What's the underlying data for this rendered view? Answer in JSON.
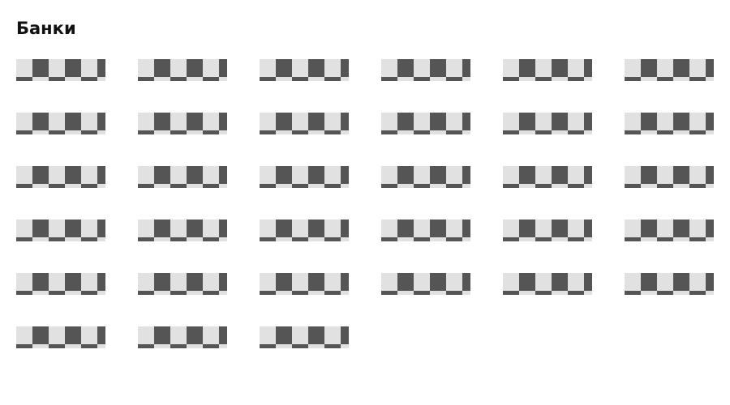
{
  "section": {
    "title": "Банки"
  },
  "logo_placeholder": {
    "light_color": "#e1e1e1",
    "dark_color": "#555555",
    "pattern": "checkerboard"
  },
  "banks": [
    {
      "status": "logo-loading"
    },
    {
      "status": "logo-loading"
    },
    {
      "status": "logo-loading"
    },
    {
      "status": "logo-loading"
    },
    {
      "status": "logo-loading"
    },
    {
      "status": "logo-loading"
    },
    {
      "status": "logo-loading"
    },
    {
      "status": "logo-loading"
    },
    {
      "status": "logo-loading"
    },
    {
      "status": "logo-loading"
    },
    {
      "status": "logo-loading"
    },
    {
      "status": "logo-loading"
    },
    {
      "status": "logo-loading"
    },
    {
      "status": "logo-loading"
    },
    {
      "status": "logo-loading"
    },
    {
      "status": "logo-loading"
    },
    {
      "status": "logo-loading"
    },
    {
      "status": "logo-loading"
    },
    {
      "status": "logo-loading"
    },
    {
      "status": "logo-loading"
    },
    {
      "status": "logo-loading"
    },
    {
      "status": "logo-loading"
    },
    {
      "status": "logo-loading"
    },
    {
      "status": "logo-loading"
    },
    {
      "status": "logo-loading"
    },
    {
      "status": "logo-loading"
    },
    {
      "status": "logo-loading"
    },
    {
      "status": "logo-loading"
    },
    {
      "status": "logo-loading"
    },
    {
      "status": "logo-loading"
    },
    {
      "status": "logo-loading"
    },
    {
      "status": "logo-loading"
    },
    {
      "status": "logo-loading"
    }
  ]
}
